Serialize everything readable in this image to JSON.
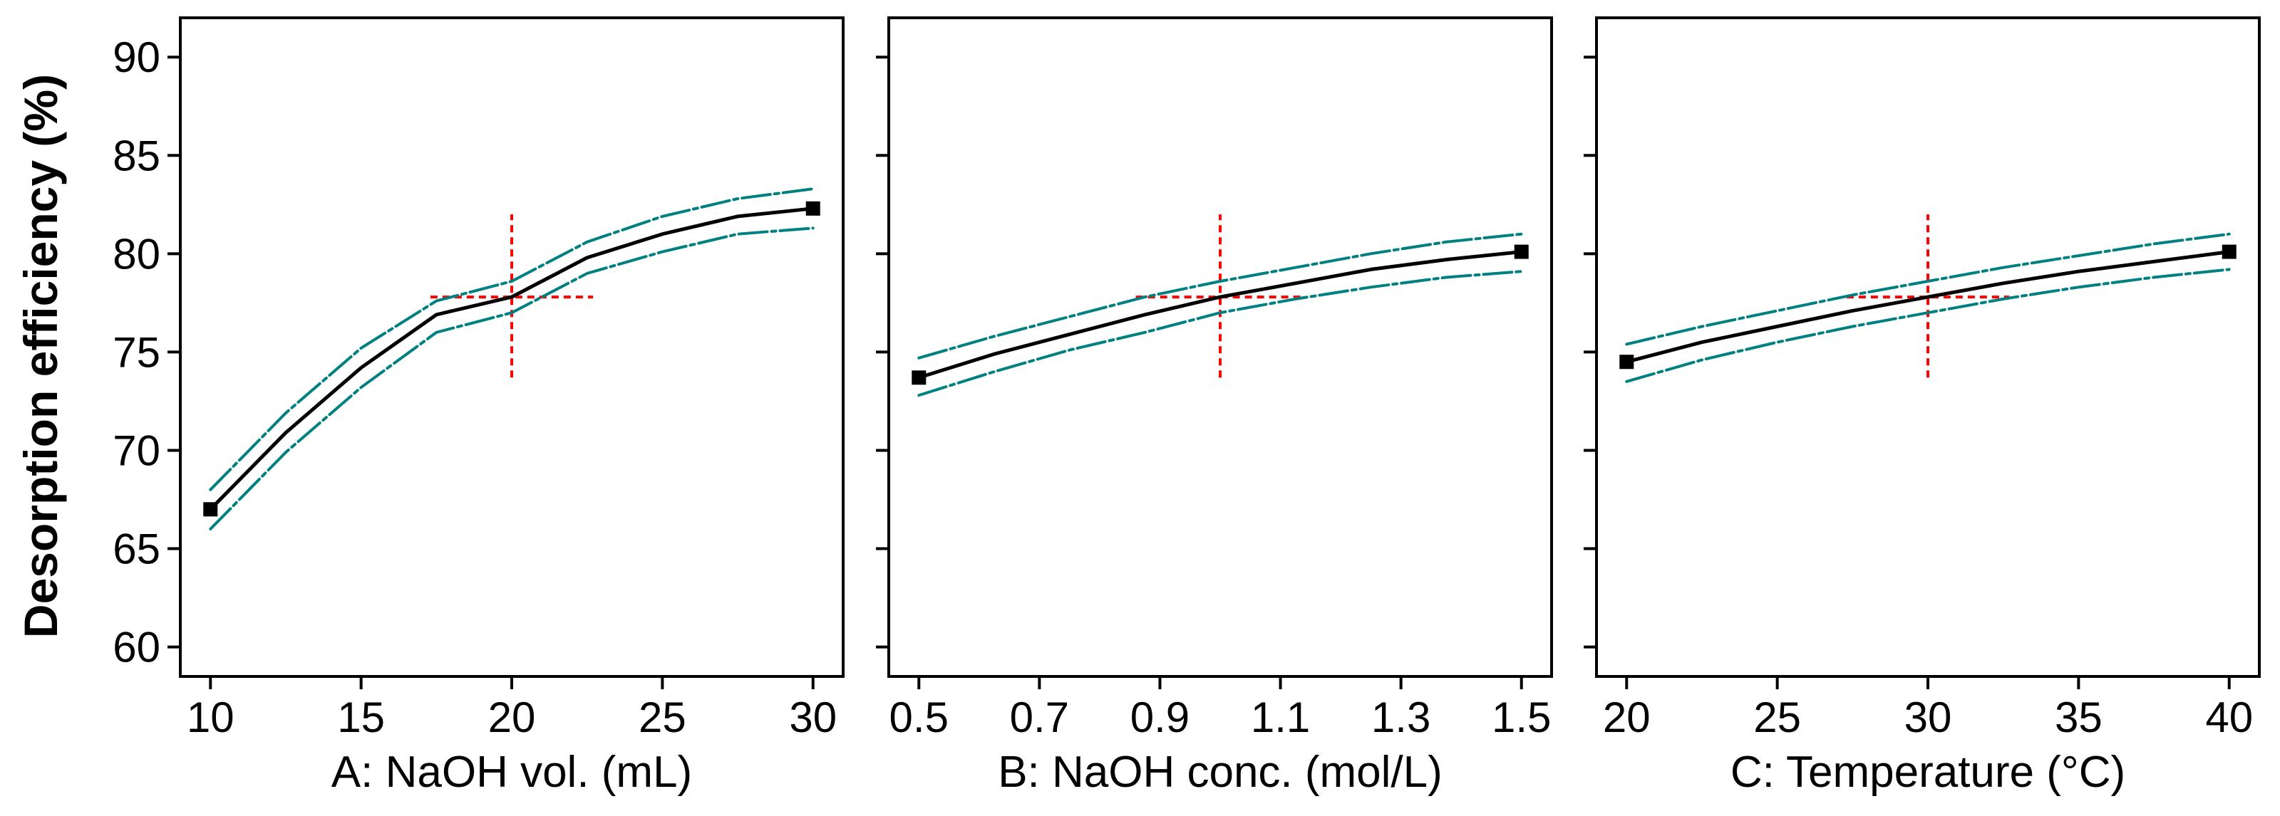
{
  "ylabel": "Desorption efficiency (%)",
  "colors": {
    "fit_line": "#000000",
    "ci_bands": "#008080",
    "reference_crosshair": "#ff0000",
    "markers": "#000000"
  },
  "chart_data": [
    {
      "type": "line",
      "xlabel": "A: NaOH vol. (mL)",
      "xlim": [
        9,
        31
      ],
      "ylim": [
        58.5,
        92
      ],
      "x_ticks": [
        10,
        15,
        20,
        25,
        30
      ],
      "x_tick_labels": [
        "10",
        "15",
        "20",
        "25",
        "30"
      ],
      "y_ticks": [
        60,
        65,
        70,
        75,
        80,
        85,
        90
      ],
      "y_tick_labels": [
        "60",
        "65",
        "70",
        "75",
        "80",
        "85",
        "90"
      ],
      "series": [
        {
          "role": "fit",
          "x": [
            10,
            12.5,
            15,
            17.5,
            20,
            22.5,
            25,
            27.5,
            30
          ],
          "values": [
            67.0,
            70.9,
            74.2,
            76.9,
            77.8,
            79.8,
            81.0,
            81.9,
            82.3
          ]
        },
        {
          "role": "upper-ci",
          "x": [
            10,
            12.5,
            15,
            17.5,
            20,
            22.5,
            25,
            27.5,
            30
          ],
          "values": [
            68.0,
            71.9,
            75.2,
            77.6,
            78.6,
            80.6,
            81.9,
            82.8,
            83.3
          ]
        },
        {
          "role": "lower-ci",
          "x": [
            10,
            12.5,
            15,
            17.5,
            20,
            22.5,
            25,
            27.5,
            30
          ],
          "values": [
            66.0,
            69.9,
            73.2,
            76.0,
            77.0,
            79.0,
            80.1,
            81.0,
            81.3
          ]
        }
      ],
      "markers": [
        {
          "x": 10,
          "y": 67.0
        },
        {
          "x": 30,
          "y": 82.3
        }
      ],
      "reference": {
        "x": 20,
        "y": 77.8,
        "x_span": [
          17.3,
          22.7
        ],
        "y_span": [
          73.7,
          82.0
        ]
      }
    },
    {
      "type": "line",
      "xlabel": "B: NaOH conc. (mol/L)",
      "xlim": [
        0.45,
        1.55
      ],
      "ylim": [
        58.5,
        92
      ],
      "x_ticks": [
        0.5,
        0.7,
        0.9,
        1.1,
        1.3,
        1.5
      ],
      "x_tick_labels": [
        "0.5",
        "0.7",
        "0.9",
        "1.1",
        "1.3",
        "1.5"
      ],
      "y_ticks": [
        60,
        65,
        70,
        75,
        80,
        85,
        90
      ],
      "y_tick_labels": [
        "",
        "",
        "",
        "",
        "",
        "",
        ""
      ],
      "series": [
        {
          "role": "fit",
          "x": [
            0.5,
            0.625,
            0.75,
            0.875,
            1.0,
            1.125,
            1.25,
            1.375,
            1.5
          ],
          "values": [
            73.7,
            74.9,
            75.9,
            76.9,
            77.8,
            78.5,
            79.2,
            79.7,
            80.1
          ]
        },
        {
          "role": "upper-ci",
          "x": [
            0.5,
            0.625,
            0.75,
            0.875,
            1.0,
            1.125,
            1.25,
            1.375,
            1.5
          ],
          "values": [
            74.7,
            75.8,
            76.8,
            77.8,
            78.6,
            79.3,
            80.0,
            80.6,
            81.0
          ]
        },
        {
          "role": "lower-ci",
          "x": [
            0.5,
            0.625,
            0.75,
            0.875,
            1.0,
            1.125,
            1.25,
            1.375,
            1.5
          ],
          "values": [
            72.8,
            74.0,
            75.1,
            76.0,
            77.0,
            77.7,
            78.3,
            78.8,
            79.1
          ]
        }
      ],
      "markers": [
        {
          "x": 0.5,
          "y": 73.7
        },
        {
          "x": 1.5,
          "y": 80.1
        }
      ],
      "reference": {
        "x": 1.0,
        "y": 77.8,
        "x_span": [
          0.86,
          1.14
        ],
        "y_span": [
          73.7,
          82.0
        ]
      }
    },
    {
      "type": "line",
      "xlabel": "C: Temperature (°C)",
      "xlim": [
        19,
        41
      ],
      "ylim": [
        58.5,
        92
      ],
      "x_ticks": [
        20,
        25,
        30,
        35,
        40
      ],
      "x_tick_labels": [
        "20",
        "25",
        "30",
        "35",
        "40"
      ],
      "y_ticks": [
        60,
        65,
        70,
        75,
        80,
        85,
        90
      ],
      "y_tick_labels": [
        "",
        "",
        "",
        "",
        "",
        "",
        ""
      ],
      "series": [
        {
          "role": "fit",
          "x": [
            20,
            22.5,
            25,
            27.5,
            30,
            32.5,
            35,
            37.5,
            40
          ],
          "values": [
            74.5,
            75.5,
            76.3,
            77.1,
            77.8,
            78.5,
            79.1,
            79.6,
            80.1
          ]
        },
        {
          "role": "upper-ci",
          "x": [
            20,
            22.5,
            25,
            27.5,
            30,
            32.5,
            35,
            37.5,
            40
          ],
          "values": [
            75.4,
            76.3,
            77.1,
            77.9,
            78.6,
            79.3,
            79.9,
            80.5,
            81.0
          ]
        },
        {
          "role": "lower-ci",
          "x": [
            20,
            22.5,
            25,
            27.5,
            30,
            32.5,
            35,
            37.5,
            40
          ],
          "values": [
            73.5,
            74.6,
            75.5,
            76.3,
            77.0,
            77.7,
            78.3,
            78.8,
            79.2
          ]
        }
      ],
      "markers": [
        {
          "x": 20,
          "y": 74.5
        },
        {
          "x": 40,
          "y": 80.1
        }
      ],
      "reference": {
        "x": 30,
        "y": 77.8,
        "x_span": [
          27.3,
          32.7
        ],
        "y_span": [
          73.7,
          82.0
        ]
      }
    }
  ]
}
